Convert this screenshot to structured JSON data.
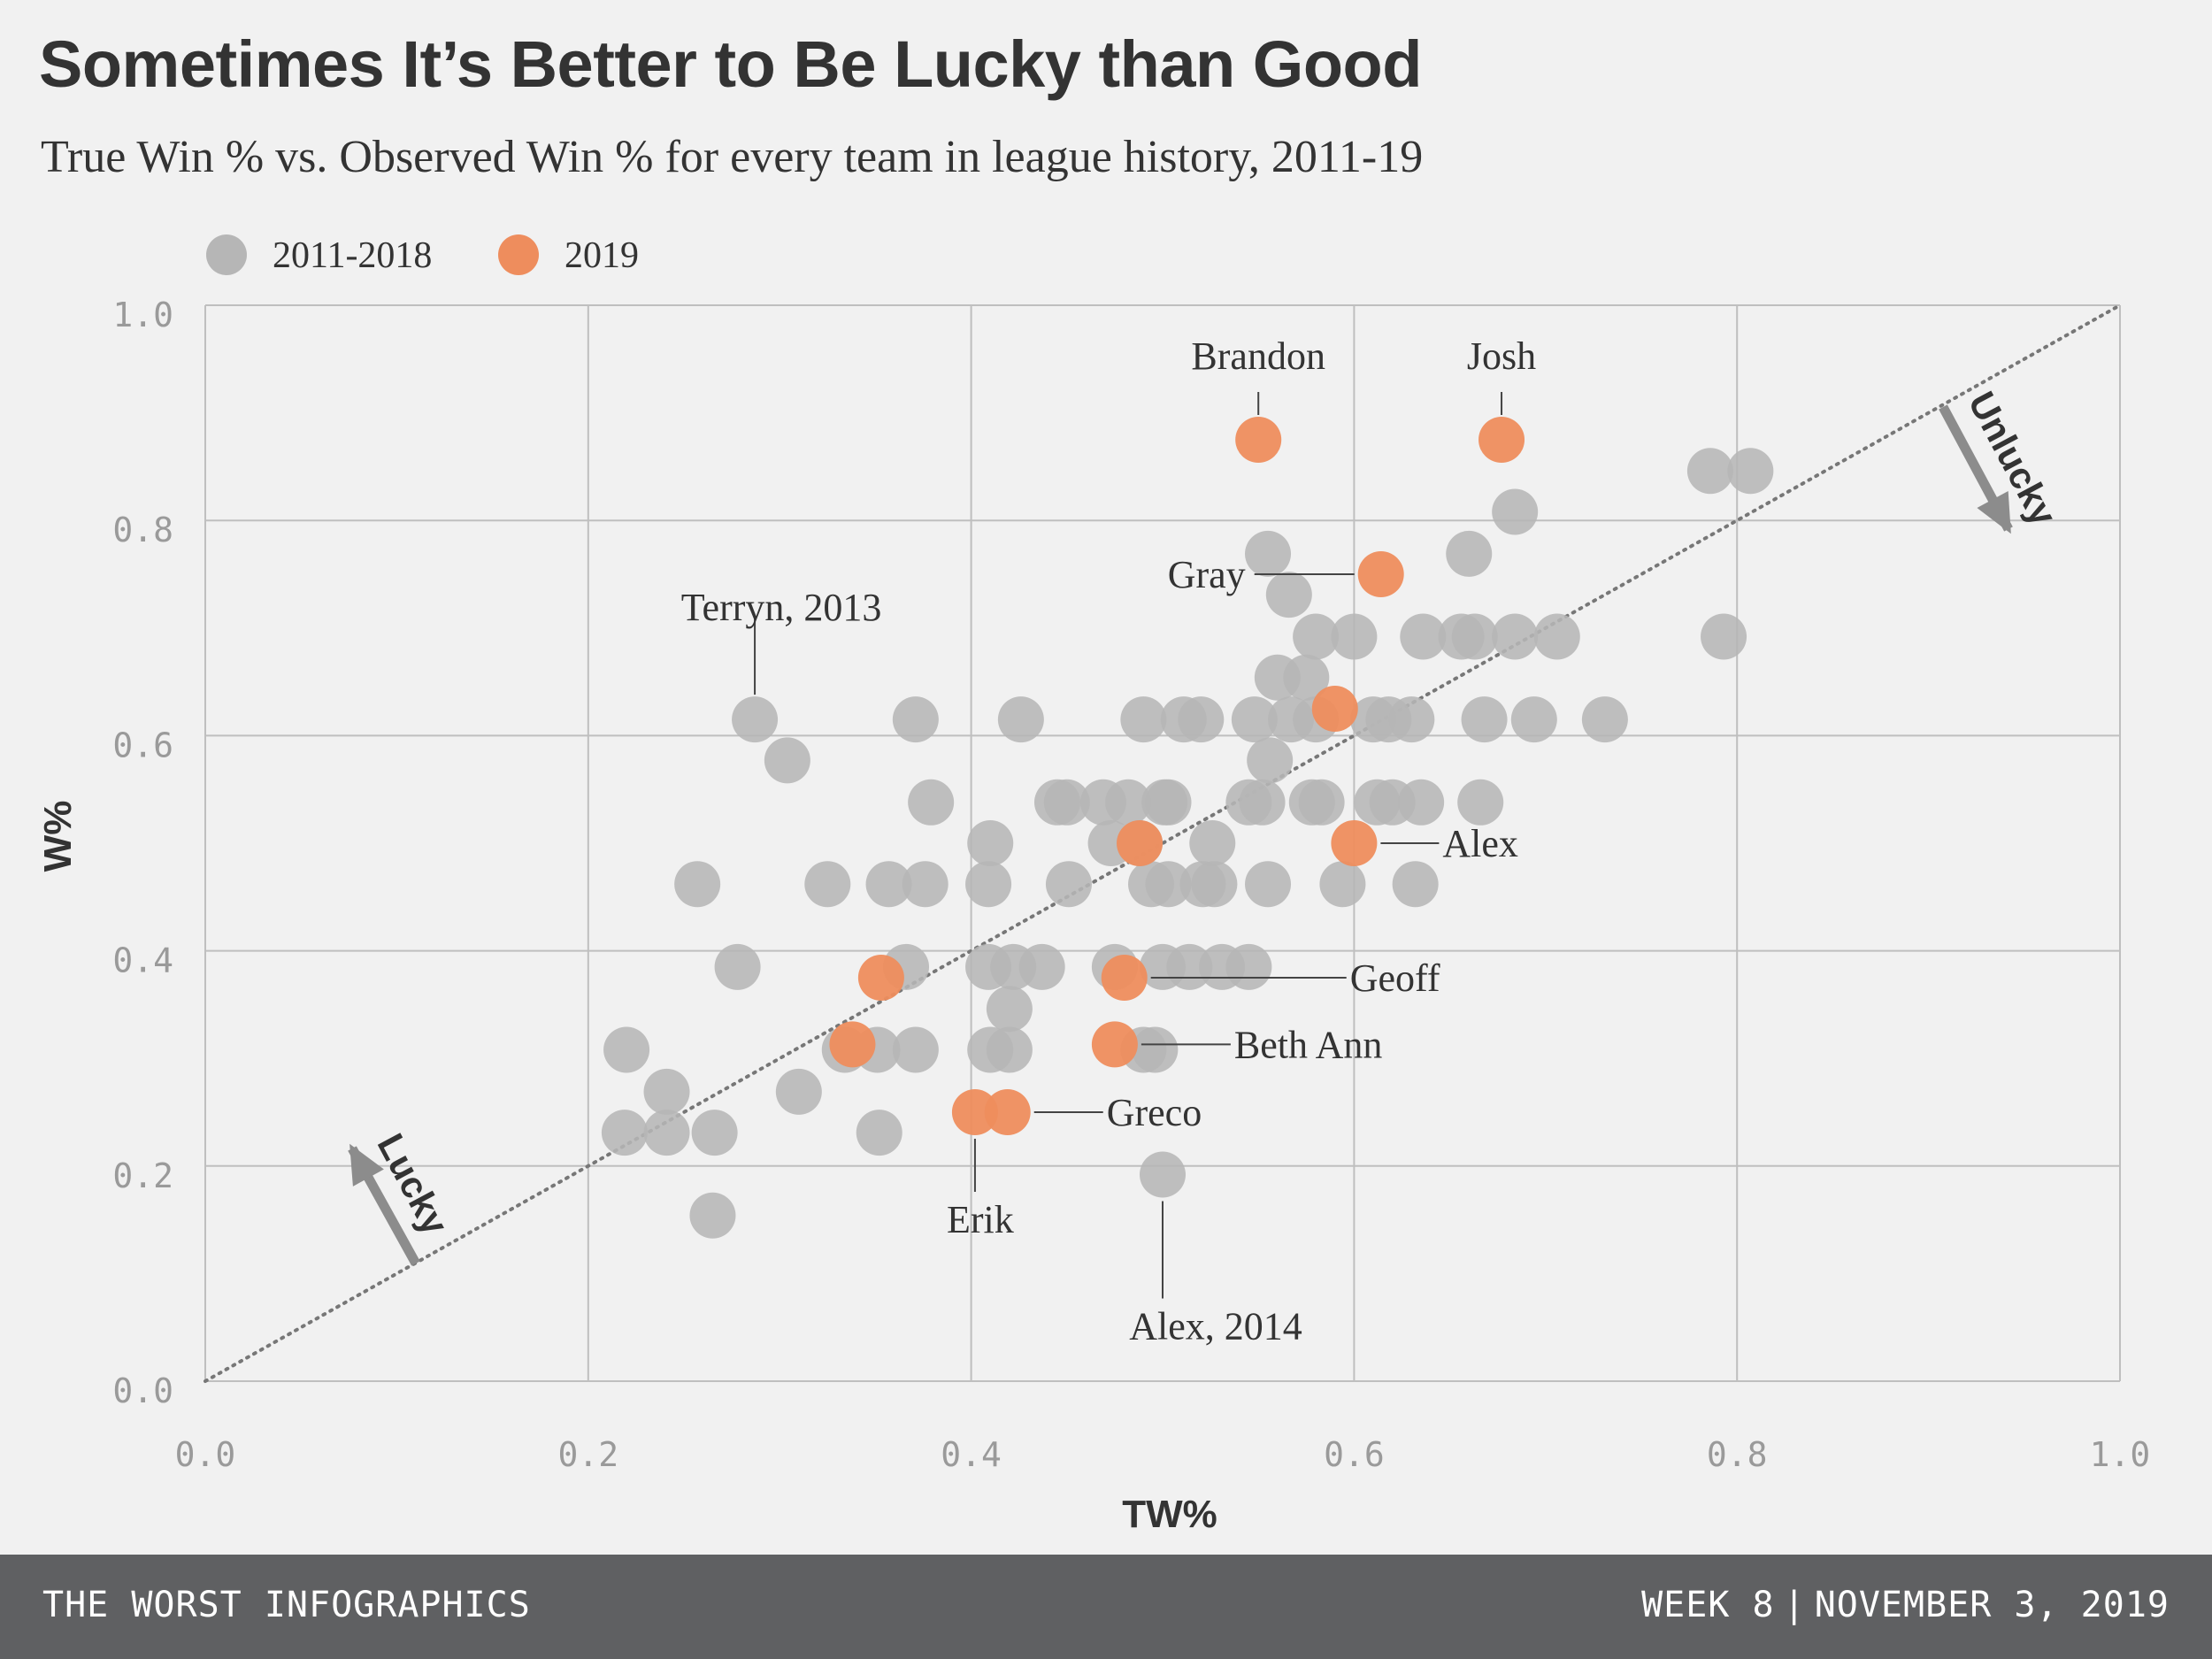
{
  "title": "Sometimes It’s Better to Be Lucky than Good",
  "subtitle": "True Win % vs. Observed Win % for every team in league history, 2011-19",
  "footer": {
    "left": "THE WORST INFOGRAPHICS",
    "week": "WEEK 8",
    "date": "NOVEMBER 3, 2019"
  },
  "colors": {
    "past": "#b6b6b6",
    "current": "#ee8d5d",
    "grid": "#bfbfbf",
    "text": "#333333",
    "arrow": "#8c8c8c"
  },
  "chart_data": {
    "type": "scatter",
    "title": "Sometimes It’s Better to Be Lucky than Good",
    "xlabel": "TW%",
    "ylabel": "W%",
    "xlim": [
      0,
      1
    ],
    "ylim": [
      0,
      1
    ],
    "xticks": [
      "0.0",
      "0.2",
      "0.4",
      "0.6",
      "0.8",
      "1.0"
    ],
    "yticks": [
      "0.0",
      "0.2",
      "0.4",
      "0.6",
      "0.8",
      "1.0"
    ],
    "grid": true,
    "legend_position": "top-left",
    "reference_line": "y = x (dotted diagonal)",
    "region_labels": {
      "upper": "Unlucky",
      "lower": "Lucky"
    },
    "series": [
      {
        "name": "2011-2018",
        "color": "#b6b6b6",
        "points": [
          [
            0.287,
            0.615
          ],
          [
            0.304,
            0.577
          ],
          [
            0.257,
            0.462
          ],
          [
            0.278,
            0.385
          ],
          [
            0.325,
            0.462
          ],
          [
            0.357,
            0.462
          ],
          [
            0.376,
            0.462
          ],
          [
            0.371,
            0.615
          ],
          [
            0.379,
            0.538
          ],
          [
            0.366,
            0.385
          ],
          [
            0.334,
            0.308
          ],
          [
            0.351,
            0.308
          ],
          [
            0.371,
            0.308
          ],
          [
            0.31,
            0.269
          ],
          [
            0.22,
            0.308
          ],
          [
            0.241,
            0.269
          ],
          [
            0.219,
            0.231
          ],
          [
            0.241,
            0.231
          ],
          [
            0.266,
            0.231
          ],
          [
            0.352,
            0.231
          ],
          [
            0.265,
            0.154
          ],
          [
            0.41,
            0.5
          ],
          [
            0.409,
            0.462
          ],
          [
            0.426,
            0.615
          ],
          [
            0.45,
            0.538
          ],
          [
            0.445,
            0.538
          ],
          [
            0.451,
            0.462
          ],
          [
            0.409,
            0.385
          ],
          [
            0.422,
            0.385
          ],
          [
            0.437,
            0.385
          ],
          [
            0.42,
            0.346
          ],
          [
            0.41,
            0.308
          ],
          [
            0.42,
            0.308
          ],
          [
            0.469,
            0.538
          ],
          [
            0.482,
            0.538
          ],
          [
            0.475,
            0.385
          ],
          [
            0.473,
            0.5
          ],
          [
            0.488,
            0.5
          ],
          [
            0.49,
            0.615
          ],
          [
            0.511,
            0.615
          ],
          [
            0.52,
            0.615
          ],
          [
            0.501,
            0.538
          ],
          [
            0.503,
            0.538
          ],
          [
            0.494,
            0.462
          ],
          [
            0.503,
            0.462
          ],
          [
            0.521,
            0.462
          ],
          [
            0.527,
            0.462
          ],
          [
            0.526,
            0.5
          ],
          [
            0.5,
            0.385
          ],
          [
            0.514,
            0.385
          ],
          [
            0.531,
            0.385
          ],
          [
            0.545,
            0.385
          ],
          [
            0.49,
            0.308
          ],
          [
            0.496,
            0.308
          ],
          [
            0.5,
            0.192
          ],
          [
            0.545,
            0.538
          ],
          [
            0.552,
            0.538
          ],
          [
            0.548,
            0.615
          ],
          [
            0.567,
            0.615
          ],
          [
            0.556,
            0.577
          ],
          [
            0.555,
            0.462
          ],
          [
            0.555,
            0.769
          ],
          [
            0.566,
            0.731
          ],
          [
            0.58,
            0.692
          ],
          [
            0.6,
            0.692
          ],
          [
            0.575,
            0.654
          ],
          [
            0.56,
            0.654
          ],
          [
            0.578,
            0.538
          ],
          [
            0.583,
            0.538
          ],
          [
            0.58,
            0.615
          ],
          [
            0.61,
            0.615
          ],
          [
            0.63,
            0.615
          ],
          [
            0.618,
            0.615
          ],
          [
            0.612,
            0.538
          ],
          [
            0.62,
            0.538
          ],
          [
            0.635,
            0.538
          ],
          [
            0.632,
            0.462
          ],
          [
            0.594,
            0.462
          ],
          [
            0.636,
            0.692
          ],
          [
            0.656,
            0.692
          ],
          [
            0.663,
            0.692
          ],
          [
            0.684,
            0.692
          ],
          [
            0.706,
            0.692
          ],
          [
            0.66,
            0.769
          ],
          [
            0.684,
            0.808
          ],
          [
            0.668,
            0.615
          ],
          [
            0.694,
            0.615
          ],
          [
            0.731,
            0.615
          ],
          [
            0.666,
            0.538
          ],
          [
            0.786,
            0.846
          ],
          [
            0.807,
            0.846
          ],
          [
            0.793,
            0.692
          ]
        ]
      },
      {
        "name": "2019",
        "color": "#ee8d5d",
        "points": [
          [
            0.55,
            0.875
          ],
          [
            0.677,
            0.875
          ],
          [
            0.614,
            0.75
          ],
          [
            0.59,
            0.625
          ],
          [
            0.6,
            0.5
          ],
          [
            0.488,
            0.5
          ],
          [
            0.48,
            0.375
          ],
          [
            0.353,
            0.375
          ],
          [
            0.338,
            0.313
          ],
          [
            0.475,
            0.313
          ],
          [
            0.402,
            0.25
          ],
          [
            0.419,
            0.25
          ]
        ]
      }
    ],
    "annotations": [
      {
        "text": "Brandon",
        "x": 0.55,
        "y": 0.875
      },
      {
        "text": "Josh",
        "x": 0.677,
        "y": 0.875
      },
      {
        "text": "Gray",
        "x": 0.614,
        "y": 0.75
      },
      {
        "text": "Terryn, 2013",
        "x": 0.287,
        "y": 0.615
      },
      {
        "text": "Alex",
        "x": 0.6,
        "y": 0.5
      },
      {
        "text": "Geoff",
        "x": 0.48,
        "y": 0.375
      },
      {
        "text": "Beth Ann",
        "x": 0.475,
        "y": 0.313
      },
      {
        "text": "Greco",
        "x": 0.419,
        "y": 0.25
      },
      {
        "text": "Erik",
        "x": 0.402,
        "y": 0.25
      },
      {
        "text": "Alex, 2014",
        "x": 0.5,
        "y": 0.192
      }
    ]
  }
}
